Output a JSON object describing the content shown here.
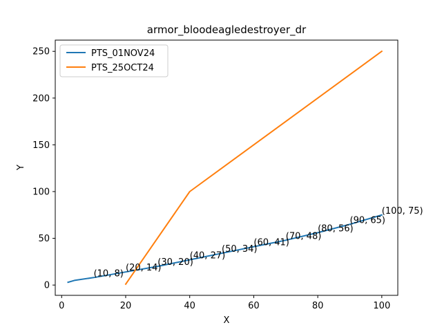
{
  "chart_data": {
    "type": "line",
    "title": "armor_bloodeagledestroyer_dr",
    "xlabel": "X",
    "ylabel": "Y",
    "xlim": [
      -2,
      105
    ],
    "ylim": [
      -11,
      262
    ],
    "xticks": [
      0,
      20,
      40,
      60,
      80,
      100
    ],
    "yticks": [
      0,
      50,
      100,
      150,
      200,
      250
    ],
    "legend_position": "top-left",
    "grid": false,
    "series": [
      {
        "name": "PTS_01NOV24",
        "color": "#1f77b4",
        "points": [
          [
            2,
            3
          ],
          [
            4,
            5
          ],
          [
            10,
            8
          ],
          [
            20,
            14
          ],
          [
            30,
            20
          ],
          [
            40,
            27
          ],
          [
            50,
            34
          ],
          [
            60,
            41
          ],
          [
            70,
            48
          ],
          [
            80,
            56
          ],
          [
            90,
            65
          ],
          [
            100,
            75
          ]
        ]
      },
      {
        "name": "PTS_25OCT24",
        "color": "#ff7f0e",
        "points": [
          [
            20,
            1
          ],
          [
            40,
            100
          ],
          [
            100,
            250
          ]
        ]
      }
    ],
    "annotations": [
      {
        "x": 10,
        "y": 8,
        "text": "(10, 8)"
      },
      {
        "x": 20,
        "y": 14,
        "text": "(20, 14)"
      },
      {
        "x": 30,
        "y": 20,
        "text": "(30, 20)"
      },
      {
        "x": 40,
        "y": 27,
        "text": "(40, 27)"
      },
      {
        "x": 50,
        "y": 34,
        "text": "(50, 34)"
      },
      {
        "x": 60,
        "y": 41,
        "text": "(60, 41)"
      },
      {
        "x": 70,
        "y": 48,
        "text": "(70, 48)"
      },
      {
        "x": 80,
        "y": 56,
        "text": "(80, 56)"
      },
      {
        "x": 90,
        "y": 65,
        "text": "(90, 65)"
      },
      {
        "x": 100,
        "y": 75,
        "text": "(100, 75)"
      }
    ]
  }
}
